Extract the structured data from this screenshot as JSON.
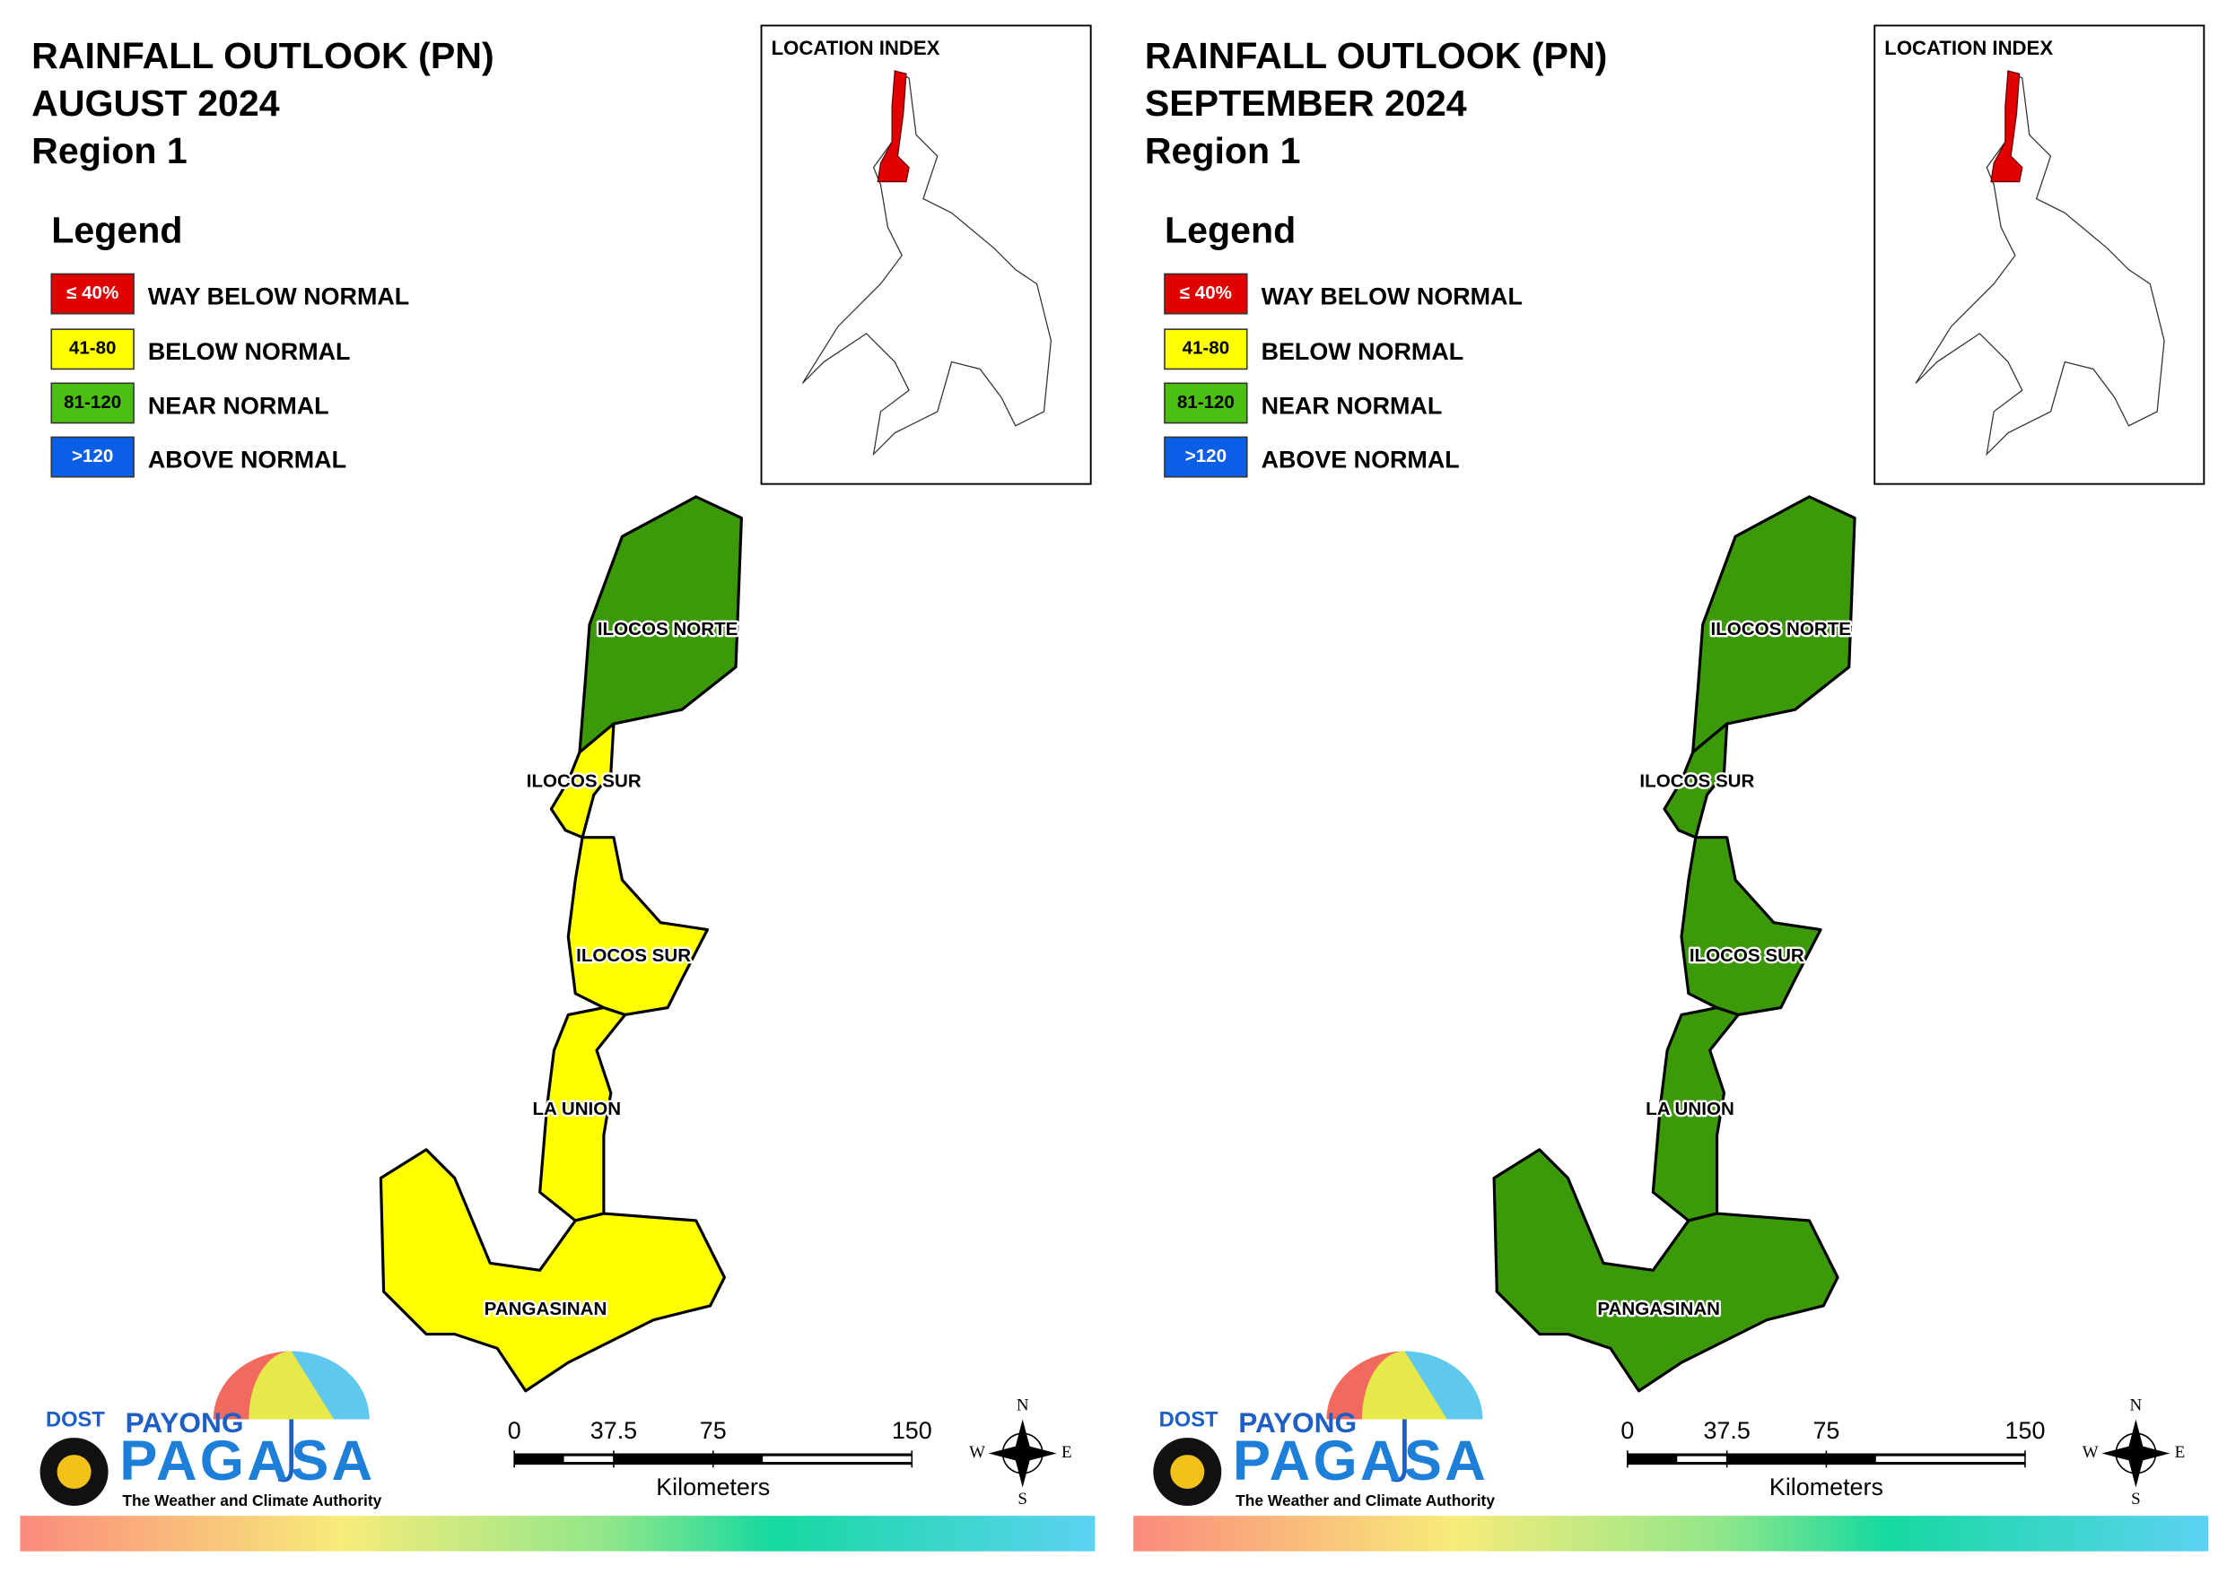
{
  "panels": [
    {
      "title": [
        "RAINFALL OUTLOOK (PN)",
        "AUGUST 2024",
        "Region 1"
      ],
      "legend": {
        "title": "Legend",
        "items": [
          {
            "key": "≤ 40%",
            "label": "WAY BELOW NORMAL",
            "color": "#e00000"
          },
          {
            "key": "41-80",
            "label": "BELOW NORMAL",
            "color": "#ffff00"
          },
          {
            "key": "81-120",
            "label": "NEAR NORMAL",
            "color": "#4cbf13"
          },
          {
            "key": ">120",
            "label": "ABOVE NORMAL",
            "color": "#0a5fe6"
          }
        ]
      },
      "location_index": "LOCATION INDEX",
      "provinces": [
        {
          "label": "ILOCOS NORTE",
          "color": "#3c9a0a"
        },
        {
          "label": "ILOCOS SUR",
          "color": "#ffff00"
        },
        {
          "label": "ILOCOS SUR",
          "color": "#ffff00"
        },
        {
          "label": "LA UNION",
          "color": "#ffff00"
        },
        {
          "label": "PANGASINAN",
          "color": "#ffff00"
        }
      ],
      "scale": {
        "ticks": [
          0,
          37.5,
          75,
          150
        ],
        "unit": "Kilometers"
      },
      "compass": [
        "N",
        "E",
        "S",
        "W"
      ],
      "logo": {
        "agency": "DOST",
        "brand": "PAYONG",
        "name": "PAGASA",
        "tagline": "The Weather and Climate Authority"
      }
    },
    {
      "title": [
        "RAINFALL OUTLOOK (PN)",
        "SEPTEMBER 2024",
        "Region 1"
      ],
      "legend": {
        "title": "Legend",
        "items": [
          {
            "key": "≤ 40%",
            "label": "WAY BELOW NORMAL",
            "color": "#e00000"
          },
          {
            "key": "41-80",
            "label": "BELOW NORMAL",
            "color": "#ffff00"
          },
          {
            "key": "81-120",
            "label": "NEAR NORMAL",
            "color": "#4cbf13"
          },
          {
            "key": ">120",
            "label": "ABOVE NORMAL",
            "color": "#0a5fe6"
          }
        ]
      },
      "location_index": "LOCATION INDEX",
      "provinces": [
        {
          "label": "ILOCOS NORTE",
          "color": "#3c9a0a"
        },
        {
          "label": "ILOCOS SUR",
          "color": "#3c9a0a"
        },
        {
          "label": "ILOCOS SUR",
          "color": "#3c9a0a"
        },
        {
          "label": "LA UNION",
          "color": "#3c9a0a"
        },
        {
          "label": "PANGASINAN",
          "color": "#3c9a0a"
        }
      ],
      "scale": {
        "ticks": [
          0,
          37.5,
          75,
          150
        ],
        "unit": "Kilometers"
      },
      "compass": [
        "N",
        "E",
        "S",
        "W"
      ],
      "logo": {
        "agency": "DOST",
        "brand": "PAYONG",
        "name": "PAGASA",
        "tagline": "The Weather and Climate Authority"
      }
    }
  ]
}
